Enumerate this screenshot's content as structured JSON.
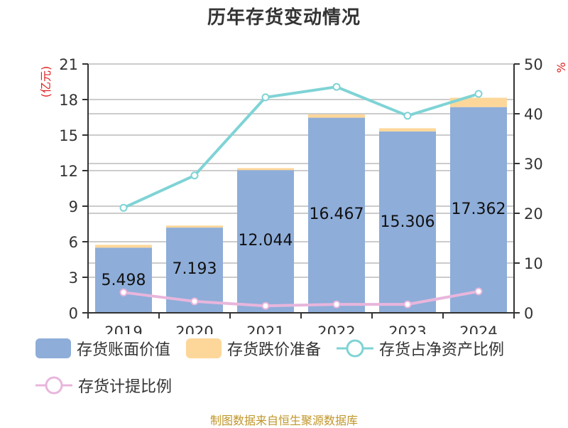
{
  "title": "历年存货变动情况",
  "footer": "制图数据来自恒生聚源数据库",
  "left_axis_unit": "(亿元)",
  "right_axis_unit": "%",
  "colors": {
    "book_value": "#8eadd9",
    "provision": "#fdd79a",
    "ratio_net_assets": "#7fd3d5",
    "provision_ratio": "#e8b6dc",
    "unit_label": "#e02020",
    "footer": "#c0962a"
  },
  "legend": [
    {
      "label": "存货账面价值",
      "type": "bar",
      "color": "#8eadd9"
    },
    {
      "label": "存货跌价准备",
      "type": "bar",
      "color": "#fdd79a"
    },
    {
      "label": "存货占净资产比例",
      "type": "line",
      "color": "#7fd3d5"
    },
    {
      "label": "存货计提比例",
      "type": "line",
      "color": "#e8b6dc"
    }
  ],
  "chart_data": {
    "type": "bar",
    "title": "历年存货变动情况",
    "xlabel": "",
    "ylabel": "亿元",
    "y2label": "%",
    "categories": [
      "2019",
      "2020",
      "2021",
      "2022",
      "2023",
      "2024"
    ],
    "ylim": [
      0,
      21
    ],
    "yticks": [
      0,
      3,
      6,
      9,
      12,
      15,
      18,
      21
    ],
    "y2lim": [
      0,
      50
    ],
    "y2ticks": [
      0,
      10,
      20,
      30,
      40,
      50
    ],
    "grid": true,
    "legend_position": "bottom",
    "series": [
      {
        "name": "存货账面价值",
        "type": "bar",
        "stack": "inventory",
        "axis": "left",
        "values": [
          5.498,
          7.193,
          12.044,
          16.467,
          15.306,
          17.362
        ],
        "labels": [
          "5.498",
          "7.193",
          "12.044",
          "16.467",
          "15.306",
          "17.362"
        ]
      },
      {
        "name": "存货跌价准备",
        "type": "bar",
        "stack": "inventory",
        "axis": "left",
        "values": [
          0.24,
          0.17,
          0.17,
          0.28,
          0.27,
          0.79
        ]
      },
      {
        "name": "存货占净资产比例",
        "type": "line",
        "axis": "right",
        "values": [
          21.1,
          27.6,
          43.3,
          45.4,
          39.6,
          44.0
        ]
      },
      {
        "name": "存货计提比例",
        "type": "line",
        "axis": "right",
        "values": [
          4.1,
          2.3,
          1.4,
          1.7,
          1.7,
          4.3
        ]
      }
    ]
  }
}
